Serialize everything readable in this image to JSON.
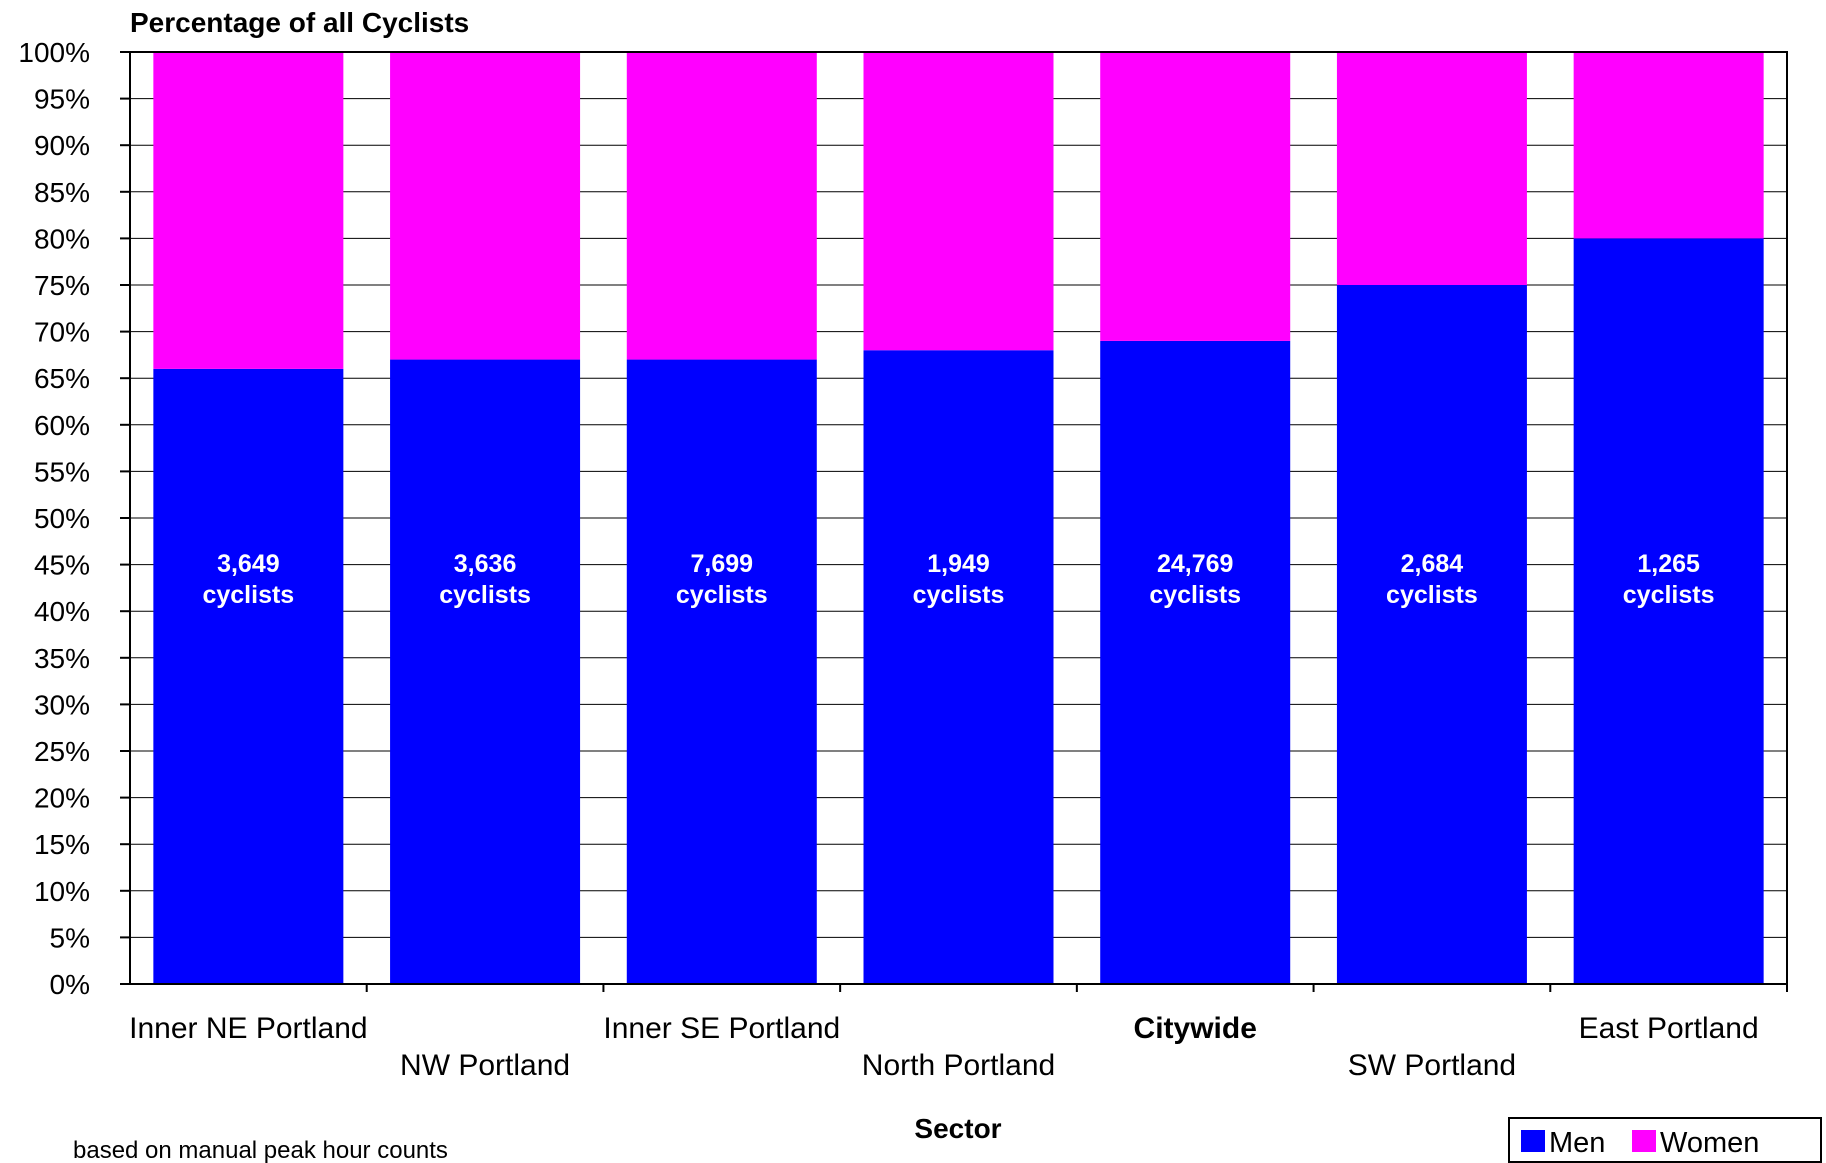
{
  "chart_data": {
    "type": "bar",
    "stacked": true,
    "title": "Percentage of all Cyclists",
    "xlabel": "Sector",
    "ylabel": "",
    "note": "based on manual peak hour counts",
    "ylim": [
      0,
      100
    ],
    "ytick_step": 5,
    "ytick_suffix": "%",
    "grid": true,
    "legend_position": "bottom-right",
    "categories": [
      "Inner NE Portland",
      "NW Portland",
      "Inner SE Portland",
      "North Portland",
      "Citywide",
      "SW Portland",
      "East Portland"
    ],
    "highlight_category": "Citywide",
    "totals": [
      {
        "count": "3,649",
        "unit": "cyclists"
      },
      {
        "count": "3,636",
        "unit": "cyclists"
      },
      {
        "count": "7,699",
        "unit": "cyclists"
      },
      {
        "count": "1,949",
        "unit": "cyclists"
      },
      {
        "count": "24,769",
        "unit": "cyclists"
      },
      {
        "count": "2,684",
        "unit": "cyclists"
      },
      {
        "count": "1,265",
        "unit": "cyclists"
      }
    ],
    "series": [
      {
        "name": "Men",
        "color": "#0000ff",
        "values": [
          66,
          67,
          67,
          68,
          69,
          75,
          80
        ]
      },
      {
        "name": "Women",
        "color": "#ff00ff",
        "values": [
          34,
          33,
          33,
          32,
          31,
          25,
          20
        ]
      }
    ]
  }
}
